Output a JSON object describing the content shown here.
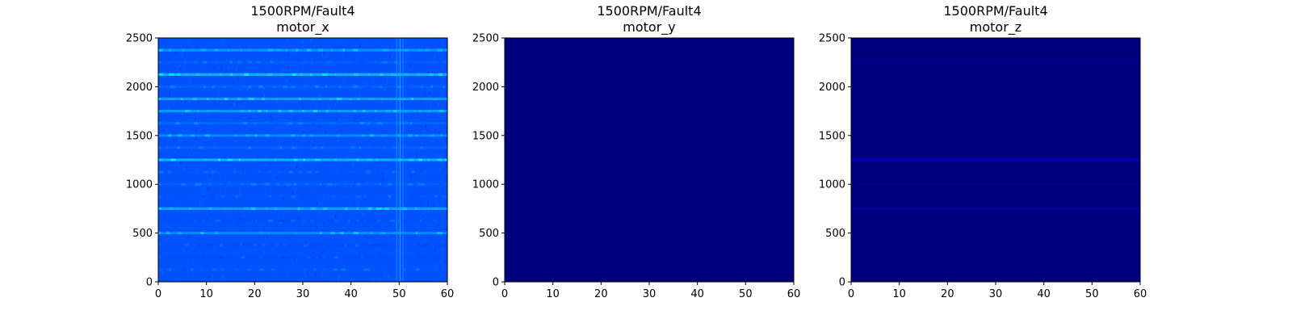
{
  "figure": {
    "background": "#ffffff",
    "colormap": [
      "#00007f",
      "#0000ff",
      "#0080ff",
      "#00ffff"
    ]
  },
  "chart_data": [
    {
      "type": "heatmap",
      "title": [
        "1500RPM/Fault4",
        "motor_x"
      ],
      "xlabel": "",
      "ylabel": "",
      "xlim": [
        0,
        60
      ],
      "ylim": [
        0,
        2500
      ],
      "xticks": [
        0,
        10,
        20,
        30,
        40,
        50,
        60
      ],
      "yticks": [
        0,
        500,
        1000,
        1500,
        2000,
        2500
      ],
      "base_intensity": 0.55,
      "bands": [
        {
          "freq": 125,
          "intensity": 0.62
        },
        {
          "freq": 250,
          "intensity": 0.6
        },
        {
          "freq": 375,
          "intensity": 0.6
        },
        {
          "freq": 500,
          "intensity": 0.8
        },
        {
          "freq": 625,
          "intensity": 0.6
        },
        {
          "freq": 750,
          "intensity": 0.88
        },
        {
          "freq": 875,
          "intensity": 0.62
        },
        {
          "freq": 1000,
          "intensity": 0.66
        },
        {
          "freq": 1125,
          "intensity": 0.62
        },
        {
          "freq": 1250,
          "intensity": 0.95
        },
        {
          "freq": 1375,
          "intensity": 0.66
        },
        {
          "freq": 1500,
          "intensity": 0.8
        },
        {
          "freq": 1625,
          "intensity": 0.68
        },
        {
          "freq": 1750,
          "intensity": 0.86
        },
        {
          "freq": 1875,
          "intensity": 0.86
        },
        {
          "freq": 2000,
          "intensity": 0.66
        },
        {
          "freq": 2125,
          "intensity": 0.95
        },
        {
          "freq": 2250,
          "intensity": 0.64
        },
        {
          "freq": 2375,
          "intensity": 0.84
        }
      ],
      "vertical_lines": [
        {
          "t": 49.5,
          "intensity": 0.75
        },
        {
          "t": 50.2,
          "intensity": 0.85
        },
        {
          "t": 50.8,
          "intensity": 0.75
        }
      ]
    },
    {
      "type": "heatmap",
      "title": [
        "1500RPM/Fault4",
        "motor_y"
      ],
      "xlabel": "",
      "ylabel": "",
      "xlim": [
        0,
        60
      ],
      "ylim": [
        0,
        2500
      ],
      "xticks": [
        0,
        10,
        20,
        30,
        40,
        50,
        60
      ],
      "yticks": [
        0,
        500,
        1000,
        1500,
        2000,
        2500
      ],
      "base_intensity": 0.0,
      "bands": [],
      "vertical_lines": []
    },
    {
      "type": "heatmap",
      "title": [
        "1500RPM/Fault4",
        "motor_z"
      ],
      "xlabel": "",
      "ylabel": "",
      "xlim": [
        0,
        60
      ],
      "ylim": [
        0,
        2500
      ],
      "xticks": [
        0,
        10,
        20,
        30,
        40,
        50,
        60
      ],
      "yticks": [
        0,
        500,
        1000,
        1500,
        2000,
        2500
      ],
      "base_intensity": 0.0,
      "bands": [
        {
          "freq": 750,
          "intensity": 0.1
        },
        {
          "freq": 1000,
          "intensity": 0.06
        },
        {
          "freq": 1250,
          "intensity": 0.22
        },
        {
          "freq": 2250,
          "intensity": 0.05
        }
      ],
      "vertical_lines": []
    }
  ]
}
